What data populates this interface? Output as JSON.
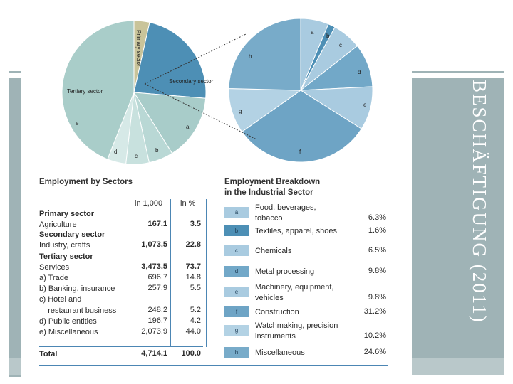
{
  "title": "BESCHÄFTIGUNG (2011)",
  "pie_labels": {
    "primary": "Primary sector",
    "secondary": "Secondary sector",
    "tertiary": "Tertiary sector",
    "a": "a",
    "b": "b",
    "c": "c",
    "d": "d",
    "e": "e",
    "f": "f",
    "g": "g",
    "h": "h"
  },
  "sectors_table": {
    "title": "Employment by Sectors",
    "col_1000": "in 1,000",
    "col_pct": "in %",
    "rows": [
      {
        "label": "Primary sector",
        "bold": true,
        "v1": "",
        "v2": ""
      },
      {
        "label": "Agriculture",
        "bold": false,
        "v1": "167.1",
        "v2": "3.5",
        "strong": true
      },
      {
        "label": "Secondary sector",
        "bold": true,
        "v1": "",
        "v2": ""
      },
      {
        "label": "Industry, crafts",
        "bold": false,
        "v1": "1,073.5",
        "v2": "22.8",
        "strong": true
      },
      {
        "label": "Tertiary sector",
        "bold": true,
        "v1": "",
        "v2": ""
      },
      {
        "label": "Services",
        "bold": false,
        "v1": "3,473.5",
        "v2": "73.7",
        "strong": true
      },
      {
        "label": "a) Trade",
        "bold": false,
        "v1": "696.7",
        "v2": "14.8"
      },
      {
        "label": "b) Banking, insurance",
        "bold": false,
        "v1": "257.9",
        "v2": "5.5"
      },
      {
        "label": "c) Hotel and",
        "bold": false,
        "v1": "",
        "v2": ""
      },
      {
        "label": "    restaurant business",
        "bold": false,
        "v1": "248.2",
        "v2": "5.2"
      },
      {
        "label": "d) Public entities",
        "bold": false,
        "v1": "196.7",
        "v2": "4.2"
      },
      {
        "label": "e) Miscellaneous",
        "bold": false,
        "v1": "2,073.9",
        "v2": "44.0"
      }
    ],
    "total_label": "Total",
    "total_v1": "4,714.1",
    "total_v2": "100.0"
  },
  "breakdown_table": {
    "title_line1": "Employment Breakdown",
    "title_line2": "in the Industrial Sector",
    "rows": [
      {
        "key": "a",
        "line1": "Food, beverages,",
        "line2": "tobacco",
        "value": "6.3%"
      },
      {
        "key": "b",
        "line1": "Textiles, apparel, shoes",
        "line2": "",
        "value": "1.6%"
      },
      {
        "key": "c",
        "line1": "Chemicals",
        "line2": "",
        "value": "6.5%"
      },
      {
        "key": "d",
        "line1": "Metal processing",
        "line2": "",
        "value": "9.8%"
      },
      {
        "key": "e",
        "line1": "Machinery, equipment,",
        "line2": "vehicles",
        "value": "9.8%"
      },
      {
        "key": "f",
        "line1": "Construction",
        "line2": "",
        "value": "31.2%"
      },
      {
        "key": "g",
        "line1": "Watchmaking, precision",
        "line2": "instruments",
        "value": "10.2%"
      },
      {
        "key": "h",
        "line1": "Miscellaneous",
        "line2": "",
        "value": "24.6%"
      }
    ]
  },
  "chart_data": [
    {
      "type": "pie",
      "title": "",
      "categories": [
        "Primary sector",
        "Secondary sector",
        "a",
        "b",
        "c",
        "d",
        "e"
      ],
      "values": [
        3.5,
        22.8,
        14.8,
        5.5,
        5.2,
        4.2,
        44.0
      ],
      "colors": [
        "#c9c49a",
        "#4d8fb5",
        "#a8ccc9",
        "#b9d8d5",
        "#c8e1de",
        "#d6e9e7",
        "#a9cdc9"
      ]
    },
    {
      "type": "pie",
      "title": "",
      "categories": [
        "a",
        "b",
        "c",
        "d",
        "e",
        "f",
        "g",
        "h"
      ],
      "values": [
        6.3,
        1.6,
        6.5,
        9.8,
        9.8,
        31.2,
        10.2,
        24.6
      ],
      "colors": [
        "#a9cbe0",
        "#4d8fb5",
        "#a9cbe0",
        "#72a8c8",
        "#a9cbe0",
        "#6ea4c5",
        "#b3d2e4",
        "#78abc9"
      ]
    }
  ]
}
